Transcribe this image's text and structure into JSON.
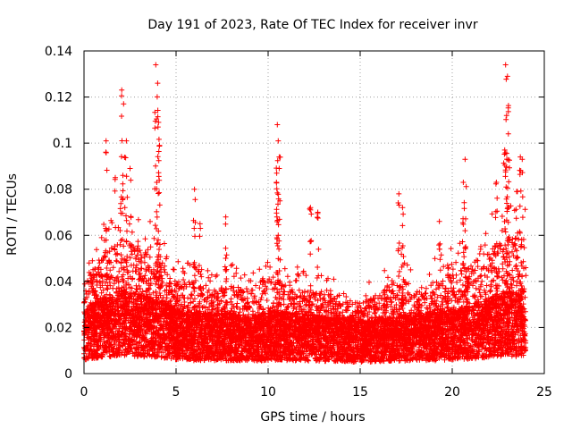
{
  "chart_data": {
    "type": "scatter",
    "title": "Day 191 of 2023, Rate Of TEC Index for receiver invr",
    "xlabel": "GPS time / hours",
    "ylabel": "ROTI / TECUs",
    "xlim": [
      0,
      25
    ],
    "ylim": [
      0,
      0.14
    ],
    "x_ticks": [
      0,
      5,
      10,
      15,
      20,
      25
    ],
    "x_tick_labels": [
      "0",
      "5",
      "10",
      "15",
      "20",
      "25"
    ],
    "y_ticks": [
      0,
      0.02,
      0.04,
      0.06,
      0.08,
      0.1,
      0.12,
      0.14
    ],
    "y_tick_labels": [
      "0",
      "0.02",
      "0.04",
      "0.06",
      "0.08",
      "0.1",
      "0.12",
      "0.14"
    ],
    "grid": true,
    "marker": "+",
    "point_color": "#ff0000",
    "data_x_range": [
      0,
      24
    ],
    "baseline_profile": {
      "x": [
        0,
        1,
        2,
        3,
        4,
        5,
        6,
        7,
        8,
        9,
        10,
        11,
        12,
        13,
        14,
        15,
        16,
        17,
        18,
        19,
        20,
        21,
        22,
        23,
        24
      ],
      "median": [
        0.017,
        0.02,
        0.022,
        0.021,
        0.02,
        0.017,
        0.016,
        0.016,
        0.016,
        0.015,
        0.016,
        0.016,
        0.016,
        0.015,
        0.015,
        0.014,
        0.015,
        0.015,
        0.016,
        0.016,
        0.017,
        0.018,
        0.02,
        0.022,
        0.02
      ],
      "upper_envelope": [
        0.05,
        0.065,
        0.075,
        0.068,
        0.065,
        0.05,
        0.05,
        0.045,
        0.048,
        0.045,
        0.055,
        0.048,
        0.045,
        0.045,
        0.04,
        0.038,
        0.042,
        0.055,
        0.045,
        0.05,
        0.055,
        0.06,
        0.07,
        0.075,
        0.075
      ]
    },
    "spikes": [
      {
        "x": 1.2,
        "y": 0.101
      },
      {
        "x": 1.7,
        "y": 0.085
      },
      {
        "x": 2.05,
        "y": 0.123
      },
      {
        "x": 2.15,
        "y": 0.117
      },
      {
        "x": 2.3,
        "y": 0.101
      },
      {
        "x": 2.5,
        "y": 0.089
      },
      {
        "x": 3.9,
        "y": 0.134
      },
      {
        "x": 4.0,
        "y": 0.126
      },
      {
        "x": 4.05,
        "y": 0.109
      },
      {
        "x": 4.1,
        "y": 0.099
      },
      {
        "x": 3.95,
        "y": 0.083
      },
      {
        "x": 6.0,
        "y": 0.08
      },
      {
        "x": 6.3,
        "y": 0.065
      },
      {
        "x": 7.7,
        "y": 0.068
      },
      {
        "x": 10.5,
        "y": 0.108
      },
      {
        "x": 10.55,
        "y": 0.101
      },
      {
        "x": 10.6,
        "y": 0.094
      },
      {
        "x": 10.45,
        "y": 0.083
      },
      {
        "x": 12.3,
        "y": 0.072
      },
      {
        "x": 12.7,
        "y": 0.07
      },
      {
        "x": 17.1,
        "y": 0.078
      },
      {
        "x": 17.3,
        "y": 0.072
      },
      {
        "x": 19.3,
        "y": 0.066
      },
      {
        "x": 20.7,
        "y": 0.093
      },
      {
        "x": 20.6,
        "y": 0.083
      },
      {
        "x": 22.4,
        "y": 0.083
      },
      {
        "x": 22.9,
        "y": 0.134
      },
      {
        "x": 23.0,
        "y": 0.129
      },
      {
        "x": 22.95,
        "y": 0.112
      },
      {
        "x": 23.05,
        "y": 0.104
      },
      {
        "x": 22.85,
        "y": 0.097
      },
      {
        "x": 23.7,
        "y": 0.094
      },
      {
        "x": 23.8,
        "y": 0.093
      },
      {
        "x": 23.5,
        "y": 0.079
      }
    ]
  }
}
